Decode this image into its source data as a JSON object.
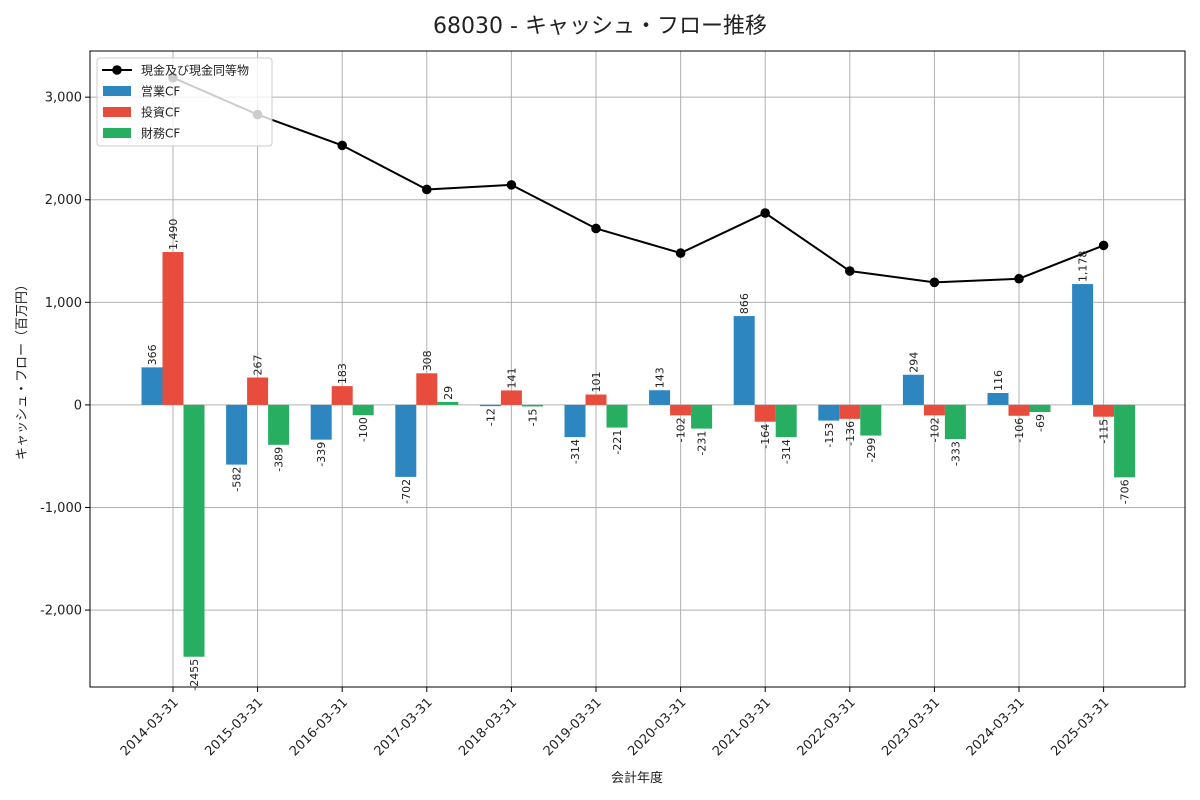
{
  "colors": {
    "operating": "#2e86c1",
    "investing": "#e74c3c",
    "financing": "#27ae60",
    "cash": "#000000",
    "grid": "#b0b0b0",
    "axis": "#000000"
  },
  "chart_data": {
    "type": "bar",
    "title": "68030 - キャッシュ・フロー推移",
    "xlabel": "会計年度",
    "ylabel": "キャッシュ・フロー（百万円）",
    "ylim": [
      -2750,
      3450
    ],
    "yticks": [
      -2000,
      -1000,
      0,
      1000,
      2000,
      3000
    ],
    "ytick_labels": [
      "-2,000",
      "-1,000",
      "0",
      "1,000",
      "2,000",
      "3,000"
    ],
    "grid": true,
    "legend_position": "top-left",
    "categories": [
      "2014-03-31",
      "2015-03-31",
      "2016-03-31",
      "2017-03-31",
      "2018-03-31",
      "2019-03-31",
      "2020-03-31",
      "2021-03-31",
      "2022-03-31",
      "2023-03-31",
      "2024-03-31",
      "2025-03-31"
    ],
    "series": [
      {
        "name": "営業CF",
        "kind": "bar",
        "color_key": "operating",
        "values": [
          366,
          -582,
          -339,
          -702,
          -12,
          -314,
          143,
          866,
          -153,
          294,
          116,
          1178
        ],
        "labels": [
          "366",
          "-582",
          "-339",
          "-702",
          "-12",
          "-314",
          "143",
          "866",
          "-153",
          "294",
          "116",
          "1,178"
        ]
      },
      {
        "name": "投資CF",
        "kind": "bar",
        "color_key": "investing",
        "values": [
          1490,
          267,
          183,
          308,
          141,
          101,
          -102,
          -164,
          -136,
          -102,
          -106,
          -115
        ],
        "labels": [
          "1,490",
          "267",
          "183",
          "308",
          "141",
          "101",
          "-102",
          "-164",
          "-136",
          "-102",
          "-106",
          "-115"
        ]
      },
      {
        "name": "財務CF",
        "kind": "bar",
        "color_key": "financing",
        "values": [
          -2455,
          -389,
          -100,
          29,
          -15,
          -221,
          -231,
          -314,
          -299,
          -333,
          -69,
          -706
        ],
        "labels": [
          "-2455",
          "-389",
          "-100",
          "29",
          "-15",
          "-221",
          "-231",
          "-314",
          "-299",
          "-333",
          "-69",
          "-706"
        ]
      },
      {
        "name": "現金及び現金同等物",
        "kind": "line",
        "color_key": "cash",
        "values": [
          3190,
          2830,
          2530,
          2100,
          2145,
          1720,
          1480,
          1870,
          1305,
          1195,
          1230,
          1555
        ]
      }
    ],
    "legend_order": [
      "現金及び現金同等物",
      "営業CF",
      "投資CF",
      "財務CF"
    ]
  }
}
